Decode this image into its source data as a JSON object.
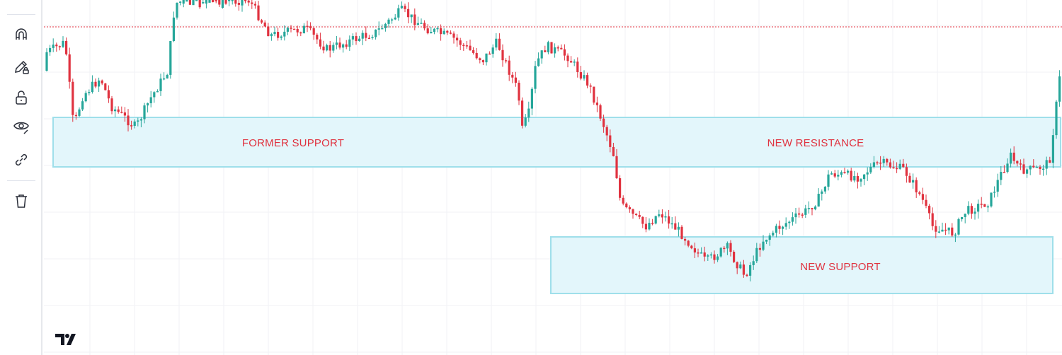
{
  "toolbar": {
    "tools": [
      {
        "name": "magnet-icon"
      },
      {
        "name": "pencil-lock-icon"
      },
      {
        "name": "unlock-icon"
      },
      {
        "name": "eye-icon"
      },
      {
        "name": "link-icon"
      },
      {
        "name": "trash-icon"
      }
    ]
  },
  "chart": {
    "type": "candlestick",
    "up_color": "#26a69a",
    "down_color": "#e0323f",
    "zone_fill": "#e3f6fb",
    "zone_stroke": "#9fdfea",
    "gridlines": true,
    "price_line": "red dotted horizontal line near top",
    "zones": [
      {
        "id": "resistance",
        "label": "FORMER SUPPORT"
      },
      {
        "id": "resistance-right",
        "label": "NEW RESISTANCE"
      },
      {
        "id": "support",
        "label": "NEW SUPPORT"
      }
    ]
  },
  "labels": {
    "former_support": "FORMER SUPPORT",
    "new_resistance": "NEW RESISTANCE",
    "new_support": "NEW SUPPORT"
  },
  "brand": {
    "logo": "tradingview-logo"
  }
}
